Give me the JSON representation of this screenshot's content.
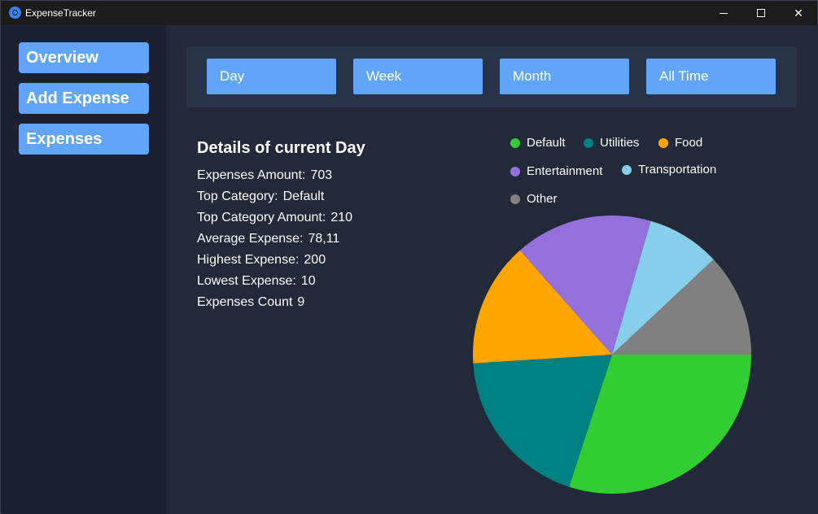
{
  "window": {
    "title": "ExpenseTracker",
    "icon": "app-logo-icon",
    "controls": {
      "minimize": "minimize-icon",
      "maximize": "maximize-icon",
      "close": "✕"
    }
  },
  "sidebar": {
    "items": [
      {
        "label": "Overview"
      },
      {
        "label": "Add Expense"
      },
      {
        "label": "Expenses"
      }
    ]
  },
  "filters": {
    "buttons": [
      {
        "label": "Day"
      },
      {
        "label": "Week"
      },
      {
        "label": "Month"
      },
      {
        "label": "All Time"
      }
    ]
  },
  "details": {
    "title": "Details of current Day",
    "stats": [
      {
        "label": "Expenses Amount:",
        "value": "703"
      },
      {
        "label": "Top Category:",
        "value": "Default"
      },
      {
        "label": "Top Category Amount:",
        "value": "210"
      },
      {
        "label": "Average Expense:",
        "value": "78,11"
      },
      {
        "label": "Highest Expense:",
        "value": "200"
      },
      {
        "label": "Lowest Expense:",
        "value": "10"
      },
      {
        "label": "Expenses Count",
        "value": "9"
      }
    ]
  },
  "chart_data": {
    "type": "pie",
    "categories": [
      "Default",
      "Utilities",
      "Food",
      "Entertainment",
      "Transportation",
      "Other"
    ],
    "values": [
      30,
      19,
      14.5,
      16,
      8.5,
      12
    ],
    "colors": [
      "#32cd32",
      "#008080",
      "#ffa500",
      "#9370db",
      "#87ceeb",
      "#808080"
    ],
    "legend_position": "top"
  },
  "colors": {
    "accent": "#60a5fa",
    "sidebar_bg": "#1b2130",
    "main_bg": "#222a3a",
    "filter_bar_bg": "#293347"
  }
}
